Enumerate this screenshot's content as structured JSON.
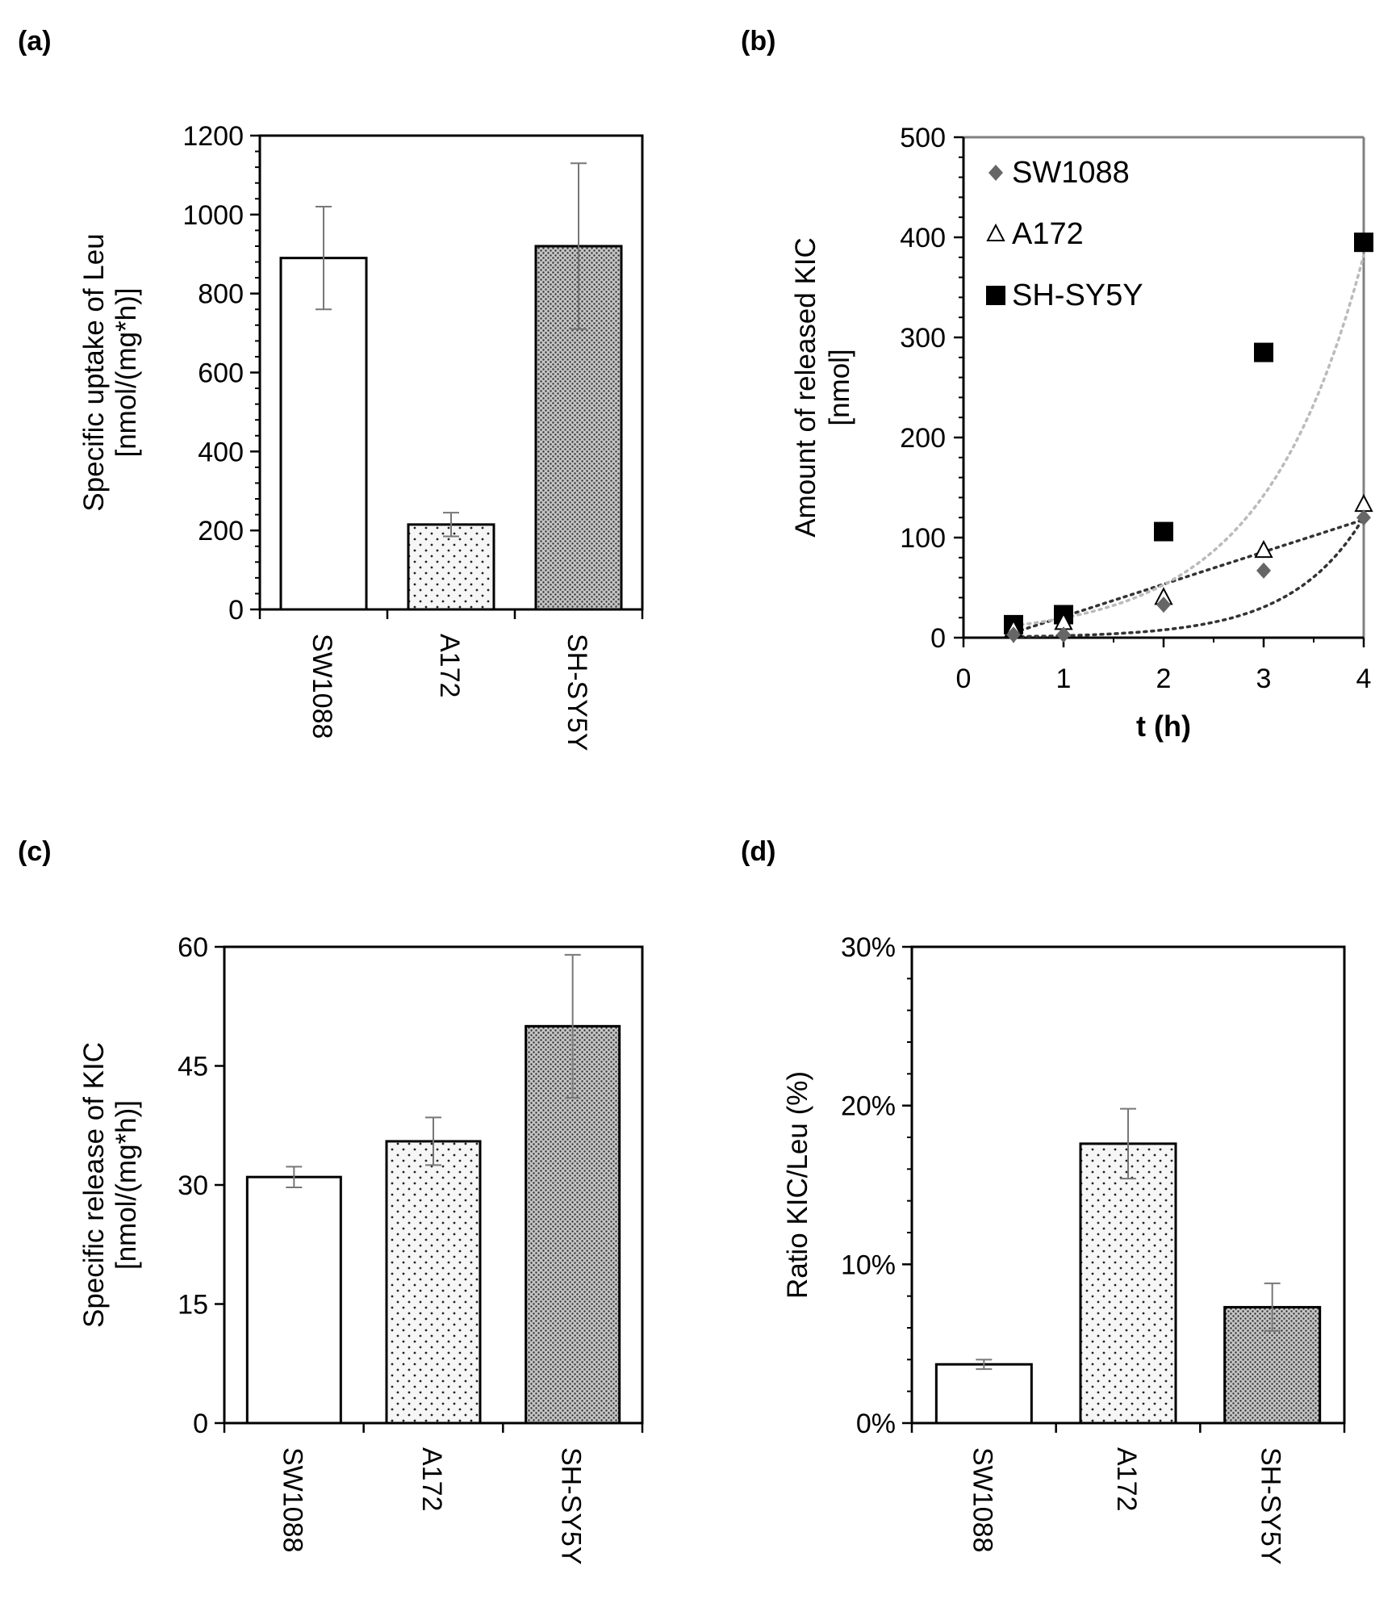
{
  "colors": {
    "text": "#000000",
    "axis": "#000000",
    "gridframe": "#000000",
    "error_bar": "#777777",
    "bar_sw1088": "#ffffff",
    "bar_a172": "#f4f4f4",
    "bar_shsy5y": "#b4b4b4",
    "sw1088_marker": "#666666",
    "a172_marker": "#ffffff",
    "shsy5y_marker": "#000000",
    "trend_line": "#bbbbbb",
    "trend_line_dark": "#333333"
  },
  "chart_data": [
    {
      "panel": "(a)",
      "type": "bar",
      "title": "",
      "categories": [
        "SW1088",
        "A172",
        "SH-SY5Y"
      ],
      "values": [
        890,
        215,
        920
      ],
      "errors": [
        130,
        30,
        210
      ],
      "fills": [
        "white",
        "light-dots",
        "dense-dots"
      ],
      "xlabel": "",
      "ylabel_lines": [
        "Specific uptake of Leu",
        "[nmol/(mg*h)]"
      ],
      "ylim": [
        0,
        1200
      ],
      "yticks": [
        0,
        200,
        400,
        600,
        800,
        1000,
        1200
      ],
      "ytick_labels": [
        "0",
        "200",
        "400",
        "600",
        "800",
        "1000",
        "1200"
      ],
      "minor_ticks": 4
    },
    {
      "panel": "(b)",
      "type": "scatter",
      "title": "",
      "xlabel": "t (h)",
      "ylabel_lines": [
        "Amount of released KIC",
        "[nmol]"
      ],
      "xlim": [
        0,
        4
      ],
      "ylim": [
        0,
        500
      ],
      "xticks": [
        0,
        1,
        2,
        3,
        4
      ],
      "xtick_labels": [
        "0",
        "1",
        "2",
        "3",
        "4"
      ],
      "yticks": [
        0,
        100,
        200,
        300,
        400,
        500
      ],
      "ytick_labels": [
        "0",
        "100",
        "200",
        "300",
        "400",
        "500"
      ],
      "legend_position": "top-left",
      "series": [
        {
          "name": "SW1088",
          "marker": "diamond",
          "x": [
            0.5,
            1,
            2,
            3,
            4
          ],
          "y": [
            3,
            3,
            33,
            67,
            120
          ],
          "trend": "exponential",
          "trend_range": [
            0.5,
            4
          ],
          "trend_y": [
            0,
            120
          ]
        },
        {
          "name": "A172",
          "marker": "triangle",
          "x": [
            0.5,
            1,
            2,
            3,
            4
          ],
          "y": [
            8,
            15,
            40,
            87,
            133
          ],
          "trend": "linear",
          "trend_range": [
            0.5,
            4
          ],
          "trend_y": [
            5,
            118
          ]
        },
        {
          "name": "SH-SY5Y",
          "marker": "square",
          "x": [
            0.5,
            1,
            2,
            3,
            4
          ],
          "y": [
            13,
            23,
            106,
            285,
            395
          ],
          "trend": "exponential",
          "trend_range": [
            0.5,
            4
          ],
          "trend_y": [
            12,
            382
          ]
        }
      ]
    },
    {
      "panel": "(c)",
      "type": "bar",
      "title": "",
      "categories": [
        "SW1088",
        "A172",
        "SH-SY5Y"
      ],
      "values": [
        31,
        35.5,
        50
      ],
      "errors": [
        1.3,
        3,
        9
      ],
      "fills": [
        "white",
        "light-dots",
        "dense-dots"
      ],
      "xlabel": "",
      "ylabel_lines": [
        "Specific release of KIC",
        "[nmol/(mg*h)]"
      ],
      "ylim": [
        0,
        60
      ],
      "yticks": [
        0,
        15,
        30,
        45,
        60
      ],
      "ytick_labels": [
        "0",
        "15",
        "30",
        "45",
        "60"
      ],
      "minor_ticks": 0
    },
    {
      "panel": "(d)",
      "type": "bar",
      "title": "",
      "categories": [
        "SW1088",
        "A172",
        "SH-SY5Y"
      ],
      "values": [
        0.037,
        0.176,
        0.073
      ],
      "errors": [
        0.003,
        0.022,
        0.015
      ],
      "fills": [
        "white",
        "light-dots",
        "dense-dots"
      ],
      "xlabel": "",
      "ylabel_lines": [
        "Ratio KIC/Leu  (%)"
      ],
      "ylim": [
        0,
        0.3
      ],
      "yticks": [
        0,
        0.1,
        0.2,
        0.3
      ],
      "ytick_labels": [
        "0%",
        "10%",
        "20%",
        "30%"
      ],
      "minor_ticks": 4
    }
  ]
}
